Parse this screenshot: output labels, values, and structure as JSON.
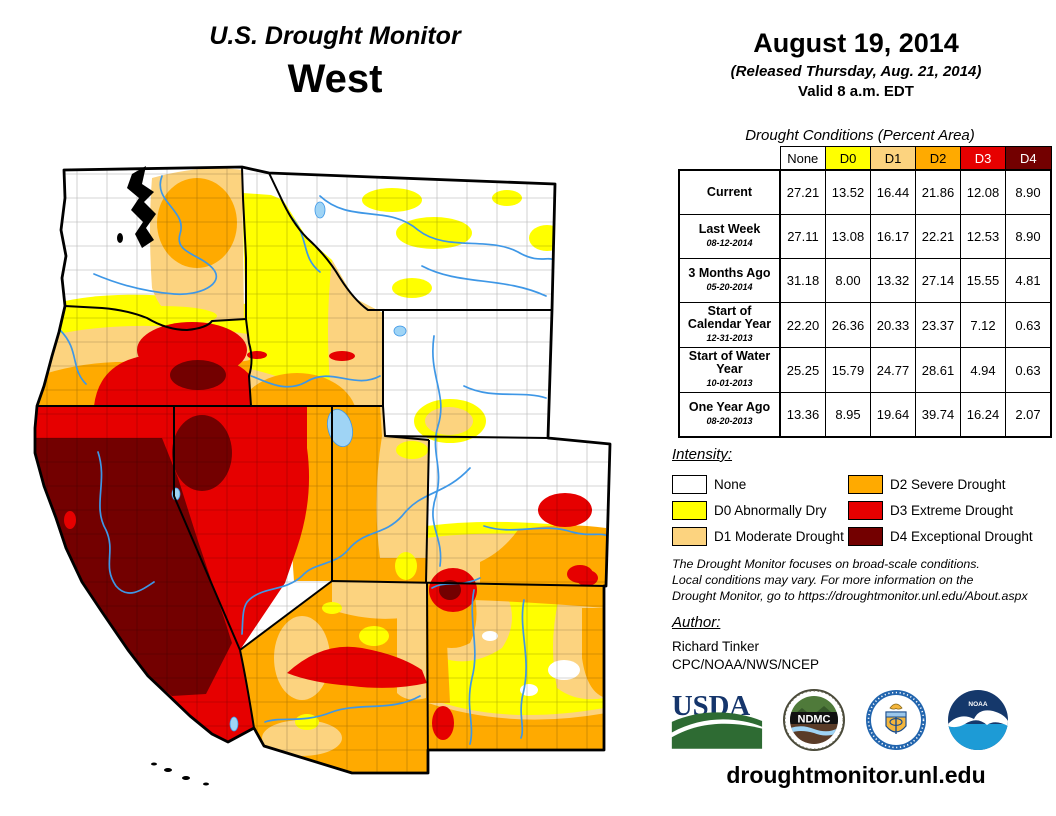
{
  "header": {
    "title": "U.S. Drought Monitor",
    "region": "West",
    "date": "August 19, 2014",
    "released": "(Released Thursday, Aug. 21, 2014)",
    "valid": "Valid 8 a.m. EDT"
  },
  "table": {
    "caption": "Drought Conditions (Percent Area)",
    "columns": [
      {
        "label": "None",
        "bg": "#FFFFFF",
        "fg": "#000000"
      },
      {
        "label": "D0",
        "bg": "#FFFF00",
        "fg": "#000000"
      },
      {
        "label": "D1",
        "bg": "#FCD37F",
        "fg": "#000000"
      },
      {
        "label": "D2",
        "bg": "#FFAA00",
        "fg": "#000000"
      },
      {
        "label": "D3",
        "bg": "#E60000",
        "fg": "#FFFFFF"
      },
      {
        "label": "D4",
        "bg": "#730000",
        "fg": "#FFFFFF"
      }
    ],
    "rows": [
      {
        "label": "Current",
        "date": "",
        "values": [
          "27.21",
          "13.52",
          "16.44",
          "21.86",
          "12.08",
          "8.90"
        ]
      },
      {
        "label": "Last Week",
        "date": "08-12-2014",
        "values": [
          "27.11",
          "13.08",
          "16.17",
          "22.21",
          "12.53",
          "8.90"
        ]
      },
      {
        "label": "3 Months Ago",
        "date": "05-20-2014",
        "values": [
          "31.18",
          "8.00",
          "13.32",
          "27.14",
          "15.55",
          "4.81"
        ]
      },
      {
        "label": "Start of Calendar Year",
        "date": "12-31-2013",
        "values": [
          "22.20",
          "26.36",
          "20.33",
          "23.37",
          "7.12",
          "0.63"
        ]
      },
      {
        "label": "Start of Water Year",
        "date": "10-01-2013",
        "values": [
          "25.25",
          "15.79",
          "24.77",
          "28.61",
          "4.94",
          "0.63"
        ]
      },
      {
        "label": "One Year Ago",
        "date": "08-20-2013",
        "values": [
          "13.36",
          "8.95",
          "19.64",
          "39.74",
          "16.24",
          "2.07"
        ]
      }
    ]
  },
  "legend": {
    "heading": "Intensity:",
    "items": [
      {
        "label": "None",
        "color": "#FFFFFF"
      },
      {
        "label": "D0 Abnormally Dry",
        "color": "#FFFF00"
      },
      {
        "label": "D1 Moderate Drought",
        "color": "#FCD37F"
      },
      {
        "label": "D2 Severe Drought",
        "color": "#FFAA00"
      },
      {
        "label": "D3 Extreme Drought",
        "color": "#E60000"
      },
      {
        "label": "D4 Exceptional Drought",
        "color": "#730000"
      }
    ]
  },
  "notes": {
    "line1": "The Drought Monitor focuses on broad-scale conditions.",
    "line2": "Local conditions may vary. For more information on the",
    "line3": "Drought Monitor, go to https://droughtmonitor.unl.edu/About.aspx"
  },
  "author": {
    "heading": "Author:",
    "name": "Richard Tinker",
    "org": "CPC/NOAA/NWS/NCEP"
  },
  "footer": {
    "url": "droughtmonitor.unl.edu"
  },
  "logos": {
    "usda": "USDA",
    "ndmc": "NDMC"
  },
  "map": {
    "colors": {
      "none": "#FFFFFF",
      "d0": "#FFFF00",
      "d1": "#FCD37F",
      "d2": "#FFAA00",
      "d3": "#E60000",
      "d4": "#730000",
      "river": "#3E97E6",
      "lake": "#9FD4F5"
    }
  }
}
